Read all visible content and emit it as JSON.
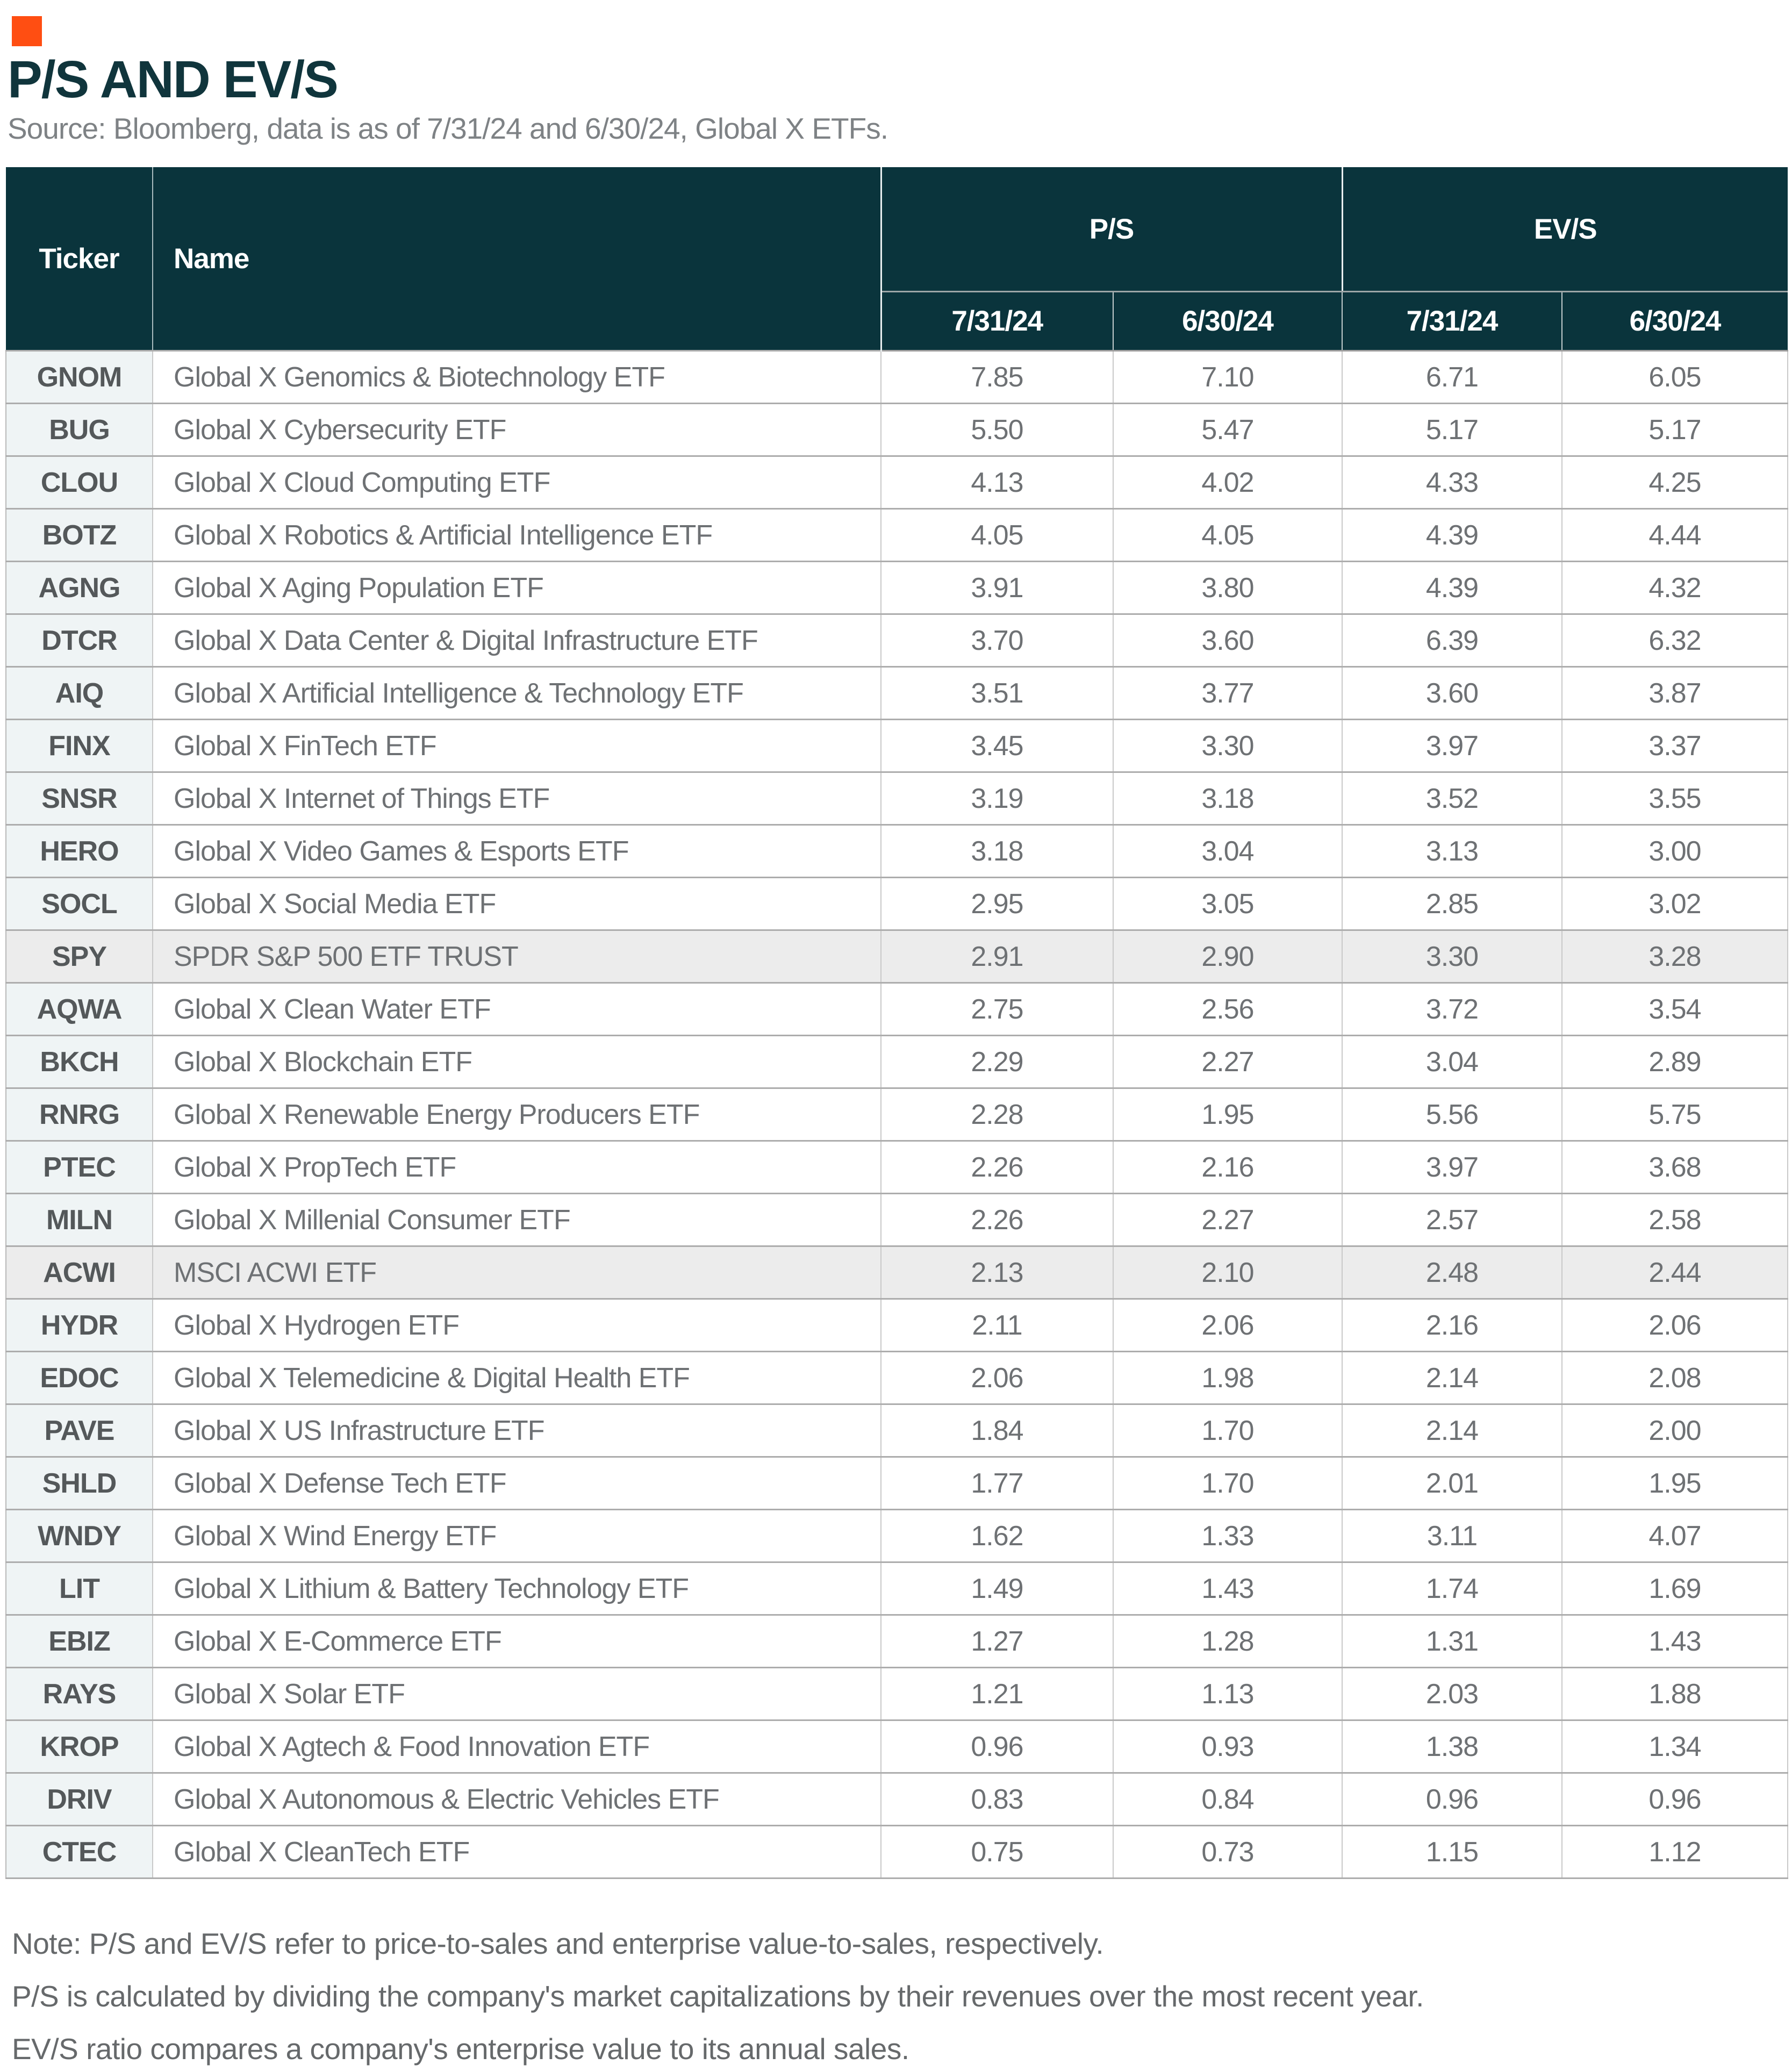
{
  "colors": {
    "brand_orange": "#FF4E12",
    "header_teal": "#0A343C",
    "ticker_column_bg": "#EFF4F5",
    "highlight_row_bg": "#ECECEC",
    "title_text": "#10353C",
    "body_text": "#6E7174"
  },
  "header": {
    "title": "P/S AND EV/S",
    "source": "Source: Bloomberg, data is as of 7/31/24 and 6/30/24, Global X ETFs."
  },
  "table": {
    "ticker_header": "Ticker",
    "name_header": "Name",
    "group_ps": "P/S",
    "group_evs": "EV/S",
    "dates": [
      "7/31/24",
      "6/30/24",
      "7/31/24",
      "6/30/24"
    ]
  },
  "notes": [
    "Note: P/S and EV/S refer to price-to-sales and enterprise value-to-sales, respectively.",
    "P/S is calculated by dividing the company's market capitalizations by their revenues over the most recent year.",
    "EV/S ratio compares a company's enterprise value to its annual sales."
  ],
  "chart_data": {
    "type": "table",
    "title": "P/S AND EV/S",
    "source": "Source: Bloomberg, data is as of 7/31/24 and 6/30/24, Global X ETFs.",
    "column_groups": [
      "P/S",
      "EV/S"
    ],
    "columns": [
      "Ticker",
      "Name",
      "P/S 7/31/24",
      "P/S 6/30/24",
      "EV/S 7/31/24",
      "EV/S 6/30/24"
    ],
    "highlighted_tickers": [
      "SPY",
      "ACWI"
    ],
    "rows": [
      {
        "ticker": "GNOM",
        "name": "Global X Genomics & Biotechnology ETF",
        "ps_0731": "7.85",
        "ps_0630": "7.10",
        "evs_0731": "6.71",
        "evs_0630": "6.05",
        "highlight": false
      },
      {
        "ticker": "BUG",
        "name": "Global X Cybersecurity ETF",
        "ps_0731": "5.50",
        "ps_0630": "5.47",
        "evs_0731": "5.17",
        "evs_0630": "5.17",
        "highlight": false
      },
      {
        "ticker": "CLOU",
        "name": "Global X Cloud Computing ETF",
        "ps_0731": "4.13",
        "ps_0630": "4.02",
        "evs_0731": "4.33",
        "evs_0630": "4.25",
        "highlight": false
      },
      {
        "ticker": "BOTZ",
        "name": "Global X Robotics & Artificial Intelligence ETF",
        "ps_0731": "4.05",
        "ps_0630": "4.05",
        "evs_0731": "4.39",
        "evs_0630": "4.44",
        "highlight": false
      },
      {
        "ticker": "AGNG",
        "name": "Global X Aging Population ETF",
        "ps_0731": "3.91",
        "ps_0630": "3.80",
        "evs_0731": "4.39",
        "evs_0630": "4.32",
        "highlight": false
      },
      {
        "ticker": "DTCR",
        "name": "Global X Data Center & Digital Infrastructure ETF",
        "ps_0731": "3.70",
        "ps_0630": "3.60",
        "evs_0731": "6.39",
        "evs_0630": "6.32",
        "highlight": false
      },
      {
        "ticker": "AIQ",
        "name": "Global X Artificial Intelligence & Technology ETF",
        "ps_0731": "3.51",
        "ps_0630": "3.77",
        "evs_0731": "3.60",
        "evs_0630": "3.87",
        "highlight": false
      },
      {
        "ticker": "FINX",
        "name": "Global X FinTech ETF",
        "ps_0731": "3.45",
        "ps_0630": "3.30",
        "evs_0731": "3.97",
        "evs_0630": "3.37",
        "highlight": false
      },
      {
        "ticker": "SNSR",
        "name": "Global X Internet of Things ETF",
        "ps_0731": "3.19",
        "ps_0630": "3.18",
        "evs_0731": "3.52",
        "evs_0630": "3.55",
        "highlight": false
      },
      {
        "ticker": "HERO",
        "name": "Global X Video Games & Esports ETF",
        "ps_0731": "3.18",
        "ps_0630": "3.04",
        "evs_0731": "3.13",
        "evs_0630": "3.00",
        "highlight": false
      },
      {
        "ticker": "SOCL",
        "name": "Global X Social Media ETF",
        "ps_0731": "2.95",
        "ps_0630": "3.05",
        "evs_0731": "2.85",
        "evs_0630": "3.02",
        "highlight": false
      },
      {
        "ticker": "SPY",
        "name": "SPDR S&P 500 ETF TRUST",
        "ps_0731": "2.91",
        "ps_0630": "2.90",
        "evs_0731": "3.30",
        "evs_0630": "3.28",
        "highlight": true
      },
      {
        "ticker": "AQWA",
        "name": "Global X Clean Water ETF",
        "ps_0731": "2.75",
        "ps_0630": "2.56",
        "evs_0731": "3.72",
        "evs_0630": "3.54",
        "highlight": false
      },
      {
        "ticker": "BKCH",
        "name": "Global X Blockchain ETF",
        "ps_0731": "2.29",
        "ps_0630": "2.27",
        "evs_0731": "3.04",
        "evs_0630": "2.89",
        "highlight": false
      },
      {
        "ticker": "RNRG",
        "name": "Global X Renewable Energy Producers ETF",
        "ps_0731": "2.28",
        "ps_0630": "1.95",
        "evs_0731": "5.56",
        "evs_0630": "5.75",
        "highlight": false
      },
      {
        "ticker": "PTEC",
        "name": "Global X PropTech ETF",
        "ps_0731": "2.26",
        "ps_0630": "2.16",
        "evs_0731": "3.97",
        "evs_0630": "3.68",
        "highlight": false
      },
      {
        "ticker": "MILN",
        "name": "Global X Millenial Consumer ETF",
        "ps_0731": "2.26",
        "ps_0630": "2.27",
        "evs_0731": "2.57",
        "evs_0630": "2.58",
        "highlight": false
      },
      {
        "ticker": "ACWI",
        "name": "MSCI ACWI ETF",
        "ps_0731": "2.13",
        "ps_0630": "2.10",
        "evs_0731": "2.48",
        "evs_0630": "2.44",
        "highlight": true
      },
      {
        "ticker": "HYDR",
        "name": "Global X Hydrogen ETF",
        "ps_0731": "2.11",
        "ps_0630": "2.06",
        "evs_0731": "2.16",
        "evs_0630": "2.06",
        "highlight": false
      },
      {
        "ticker": "EDOC",
        "name": "Global X Telemedicine & Digital Health ETF",
        "ps_0731": "2.06",
        "ps_0630": "1.98",
        "evs_0731": "2.14",
        "evs_0630": "2.08",
        "highlight": false
      },
      {
        "ticker": "PAVE",
        "name": "Global X US Infrastructure ETF",
        "ps_0731": "1.84",
        "ps_0630": "1.70",
        "evs_0731": "2.14",
        "evs_0630": "2.00",
        "highlight": false
      },
      {
        "ticker": "SHLD",
        "name": "Global X Defense Tech ETF",
        "ps_0731": "1.77",
        "ps_0630": "1.70",
        "evs_0731": "2.01",
        "evs_0630": "1.95",
        "highlight": false
      },
      {
        "ticker": "WNDY",
        "name": "Global X Wind Energy ETF",
        "ps_0731": "1.62",
        "ps_0630": "1.33",
        "evs_0731": "3.11",
        "evs_0630": "4.07",
        "highlight": false
      },
      {
        "ticker": "LIT",
        "name": "Global X Lithium & Battery Technology ETF",
        "ps_0731": "1.49",
        "ps_0630": "1.43",
        "evs_0731": "1.74",
        "evs_0630": "1.69",
        "highlight": false
      },
      {
        "ticker": "EBIZ",
        "name": "Global X E-Commerce ETF",
        "ps_0731": "1.27",
        "ps_0630": "1.28",
        "evs_0731": "1.31",
        "evs_0630": "1.43",
        "highlight": false
      },
      {
        "ticker": "RAYS",
        "name": "Global X Solar ETF",
        "ps_0731": "1.21",
        "ps_0630": "1.13",
        "evs_0731": "2.03",
        "evs_0630": "1.88",
        "highlight": false
      },
      {
        "ticker": "KROP",
        "name": "Global  X Agtech & Food Innovation ETF",
        "ps_0731": "0.96",
        "ps_0630": "0.93",
        "evs_0731": "1.38",
        "evs_0630": "1.34",
        "highlight": false
      },
      {
        "ticker": "DRIV",
        "name": "Global X Autonomous & Electric Vehicles ETF",
        "ps_0731": "0.83",
        "ps_0630": "0.84",
        "evs_0731": "0.96",
        "evs_0630": "0.96",
        "highlight": false
      },
      {
        "ticker": "CTEC",
        "name": "Global X CleanTech ETF",
        "ps_0731": "0.75",
        "ps_0630": "0.73",
        "evs_0731": "1.15",
        "evs_0630": "1.12",
        "highlight": false
      }
    ]
  }
}
